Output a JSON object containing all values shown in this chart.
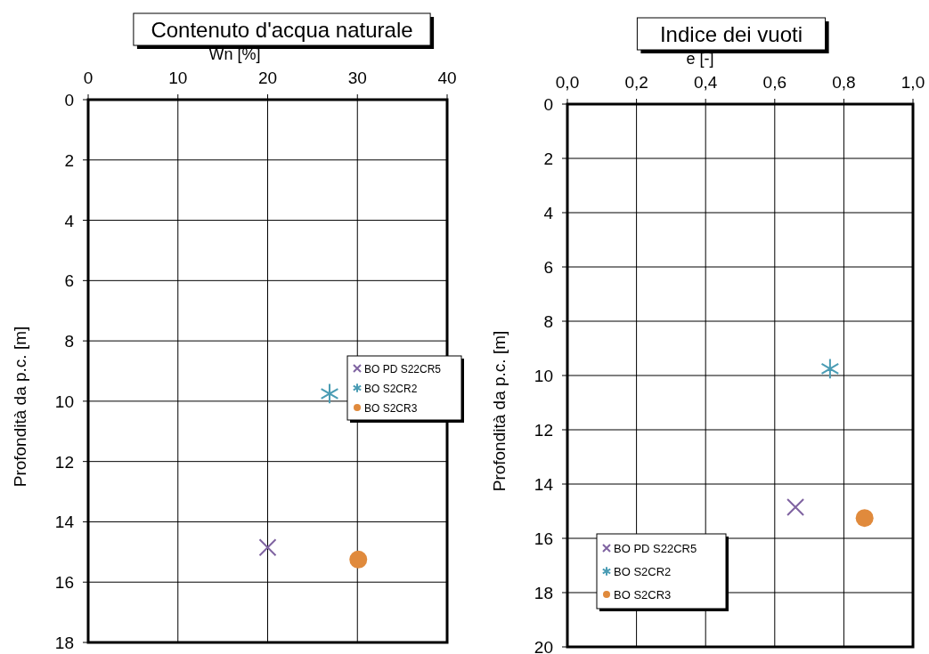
{
  "chart_data": [
    {
      "type": "scatter",
      "title": "Contenuto d'acqua naturale",
      "xlabel": "Wn [%]",
      "ylabel": "Profondità da p.c. [m]",
      "xlim": [
        0,
        40
      ],
      "xticks": [
        0,
        10,
        20,
        30,
        40
      ],
      "ylim": [
        18,
        0
      ],
      "yticks": [
        0,
        2,
        4,
        6,
        8,
        10,
        12,
        14,
        16,
        18
      ],
      "grid": true,
      "legend": "right",
      "series": [
        {
          "name": "BO PD S22CR5",
          "color": "#7f63a1",
          "marker": "cross",
          "x": [
            20
          ],
          "values": [
            14.85
          ]
        },
        {
          "name": "BO S2CR2",
          "color": "#4a9cb4",
          "x": [
            26.9
          ],
          "values": [
            9.75
          ]
        },
        {
          "name": "BO S2CR3",
          "color": "#e08a3c",
          "marker": "circle",
          "x": [
            30.1
          ],
          "values": [
            15.25
          ]
        }
      ]
    },
    {
      "type": "scatter",
      "title": "Indice dei vuoti",
      "xlabel": "e [-]",
      "ylabel": "Profondità da p.c. [m]",
      "xlim": [
        0,
        1
      ],
      "xticks": [
        {
          "value": 0,
          "label": "0,0"
        },
        {
          "value": 0.2,
          "label": "0,2"
        },
        {
          "value": 0.4,
          "label": "0,4"
        },
        {
          "value": 0.6,
          "label": "0,6"
        },
        {
          "value": 0.8,
          "label": "0,8"
        },
        {
          "value": 1,
          "label": "1,0"
        }
      ],
      "ylim": [
        20,
        0
      ],
      "yticks": [
        0,
        2,
        4,
        6,
        8,
        10,
        12,
        14,
        16,
        18,
        20
      ],
      "grid": true,
      "legend": "bottom left",
      "series": [
        {
          "name": "BO PD S22CR5",
          "color": "#7f63a1",
          "marker": "cross",
          "x": [
            0.66
          ],
          "values": [
            14.85
          ]
        },
        {
          "name": "BO S2CR2",
          "color": "#4a9cb4",
          "x": [
            0.76
          ],
          "values": [
            9.75
          ]
        },
        {
          "name": "BO S2CR3",
          "color": "#e08a3c",
          "marker": "circle",
          "x": [
            0.86
          ],
          "values": [
            15.25
          ]
        }
      ]
    }
  ]
}
